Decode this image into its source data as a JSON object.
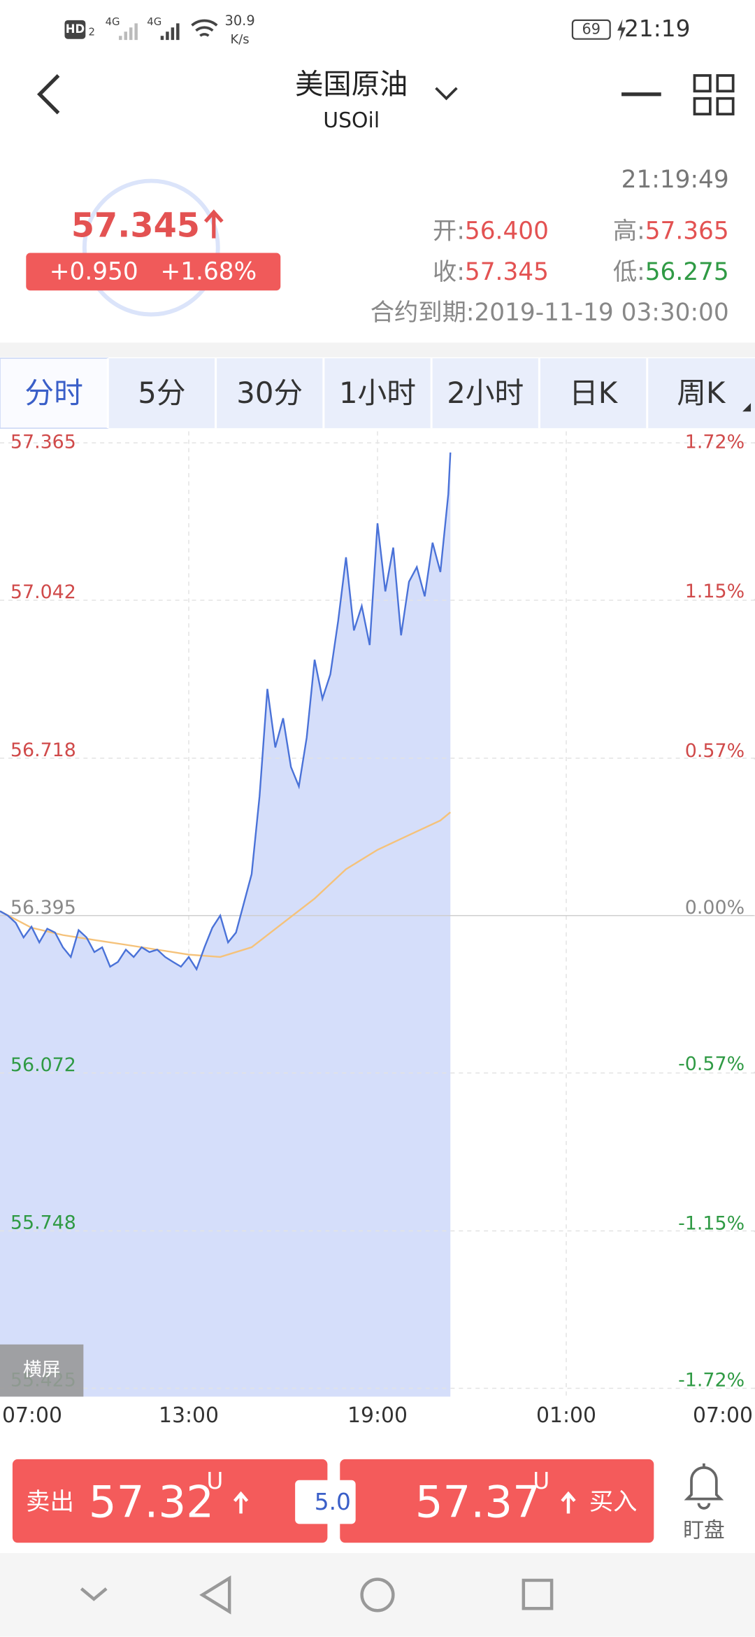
{
  "status_bar": {
    "hd": "HD",
    "sim": "2",
    "net1": "4G",
    "net2": "4G",
    "speed": "30.9",
    "speed_unit": "K/s",
    "battery": "69",
    "time": "21:19"
  },
  "header": {
    "title": "美国原油",
    "subtitle": "USOil"
  },
  "quote": {
    "price": "57.345",
    "change": "+0.950",
    "change_pct": "+1.68%",
    "time": "21:19:49",
    "open_label": "开:",
    "open": "56.400",
    "high_label": "高:",
    "high": "57.365",
    "close_label": "收:",
    "close": "57.345",
    "low_label": "低:",
    "low": "56.275",
    "expiry_label": "合约到期:",
    "expiry": "2019-11-19 03:30:00"
  },
  "tabs": [
    "分时",
    "5分",
    "30分",
    "1小时",
    "2小时",
    "日K",
    "周K"
  ],
  "chart_data": {
    "type": "line",
    "ylim": [
      55.425,
      57.365
    ],
    "yticks": [
      57.365,
      57.042,
      56.718,
      56.395,
      56.072,
      55.748,
      55.425
    ],
    "y2lim": [
      -1.72,
      1.72
    ],
    "y2ticks": [
      {
        "value": 1.72,
        "label": "1.72%"
      },
      {
        "value": 1.15,
        "label": "1.15%"
      },
      {
        "value": 0.57,
        "label": "0.57%"
      },
      {
        "value": 0.0,
        "label": "0.00%"
      },
      {
        "value": -0.57,
        "label": "-0.57%"
      },
      {
        "value": -1.15,
        "label": "-1.15%"
      },
      {
        "value": -1.72,
        "label": "-1.72%"
      }
    ],
    "xticks": [
      "07:00",
      "13:00",
      "19:00",
      "01:00",
      "07:00"
    ],
    "grid": true,
    "up_color": "#d04a4a",
    "down_color": "#2f9a44",
    "flat_color": "#888888",
    "series": [
      {
        "name": "price",
        "color": "#4a72d8",
        "fill": "#d5defa",
        "x": [
          "07:00",
          "07:15",
          "07:30",
          "07:45",
          "08:00",
          "08:15",
          "08:30",
          "08:45",
          "09:00",
          "09:15",
          "09:30",
          "09:45",
          "10:00",
          "10:15",
          "10:30",
          "10:45",
          "11:00",
          "11:15",
          "11:30",
          "11:45",
          "12:00",
          "12:15",
          "12:30",
          "12:45",
          "13:00",
          "13:15",
          "13:30",
          "13:45",
          "14:00",
          "14:15",
          "14:30",
          "14:45",
          "15:00",
          "15:15",
          "15:30",
          "15:45",
          "16:00",
          "16:15",
          "16:30",
          "16:45",
          "17:00",
          "17:15",
          "17:30",
          "17:45",
          "18:00",
          "18:15",
          "18:30",
          "18:45",
          "19:00",
          "19:15",
          "19:30",
          "19:45",
          "20:00",
          "20:15",
          "20:30",
          "20:45",
          "21:00",
          "21:15",
          "21:19"
        ],
        "values": [
          56.404,
          56.395,
          56.38,
          56.35,
          56.372,
          56.34,
          56.368,
          56.36,
          56.33,
          56.31,
          56.365,
          56.35,
          56.32,
          56.33,
          56.29,
          56.3,
          56.325,
          56.31,
          56.33,
          56.32,
          56.325,
          56.31,
          56.3,
          56.29,
          56.31,
          56.285,
          56.33,
          56.37,
          56.395,
          56.34,
          56.36,
          56.42,
          56.48,
          56.64,
          56.86,
          56.74,
          56.8,
          56.7,
          56.66,
          56.76,
          56.92,
          56.84,
          56.89,
          57.0,
          57.13,
          56.98,
          57.03,
          56.95,
          57.2,
          57.06,
          57.15,
          56.97,
          57.08,
          57.11,
          57.05,
          57.16,
          57.1,
          57.26,
          57.345
        ]
      },
      {
        "name": "average",
        "color": "#f5c27a",
        "x": [
          "07:00",
          "08:00",
          "09:00",
          "10:00",
          "11:00",
          "12:00",
          "13:00",
          "14:00",
          "15:00",
          "16:00",
          "17:00",
          "18:00",
          "19:00",
          "20:00",
          "21:00",
          "21:19"
        ],
        "values": [
          56.404,
          56.37,
          56.355,
          56.345,
          56.335,
          56.325,
          56.315,
          56.31,
          56.33,
          56.38,
          56.43,
          56.49,
          56.53,
          56.56,
          56.59,
          56.607
        ]
      }
    ]
  },
  "landscape": "横屏",
  "trade": {
    "sell_label": "卖出",
    "sell_price": "57.32",
    "sell_unit": "U",
    "spread": "5.0",
    "buy_price": "57.37",
    "buy_unit": "U",
    "buy_label": "买入",
    "watch": "盯盘"
  }
}
